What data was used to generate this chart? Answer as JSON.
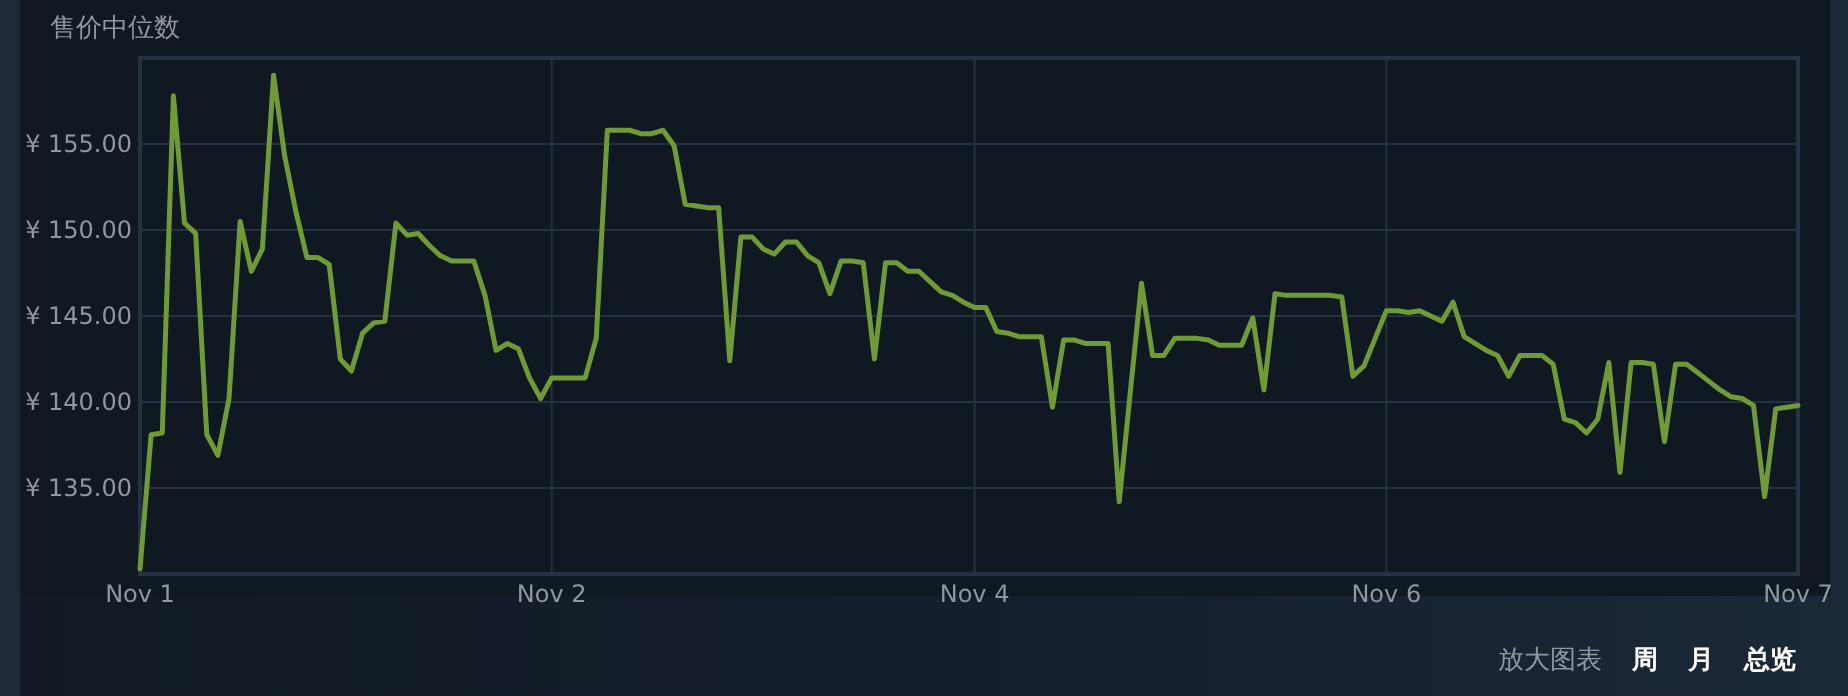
{
  "chart_data": {
    "type": "line",
    "title": "售价中位数",
    "categories": [
      "Nov 1",
      null,
      null,
      null,
      null,
      null,
      null,
      null,
      null,
      null,
      null,
      null,
      null,
      null,
      null,
      null,
      null,
      null,
      null,
      null,
      null,
      null,
      null,
      null,
      null,
      null,
      null,
      null,
      null,
      null,
      null,
      null,
      null,
      null,
      null,
      null,
      null,
      "Nov 2",
      null,
      null,
      null,
      null,
      null,
      null,
      null,
      null,
      null,
      null,
      null,
      null,
      null,
      null,
      null,
      null,
      null,
      null,
      null,
      null,
      null,
      null,
      null,
      null,
      null,
      null,
      null,
      null,
      null,
      null,
      null,
      null,
      null,
      null,
      null,
      null,
      null,
      "Nov 4",
      null,
      null,
      null,
      null,
      null,
      null,
      null,
      null,
      null,
      null,
      null,
      null,
      null,
      null,
      null,
      null,
      null,
      null,
      null,
      null,
      null,
      null,
      null,
      null,
      null,
      null,
      null,
      null,
      null,
      null,
      null,
      null,
      null,
      null,
      null,
      null,
      "Nov 6",
      null,
      null,
      null,
      null,
      null,
      null,
      null,
      null,
      null,
      null,
      null,
      null,
      null,
      null,
      null,
      null,
      null,
      null,
      null,
      null,
      null,
      null,
      null,
      null,
      null,
      null,
      null,
      null,
      null,
      null,
      null,
      null,
      null,
      null,
      null,
      null,
      "Nov 7"
    ],
    "series": [
      {
        "color": "#6f9a36",
        "values": [
          130.3,
          138.1,
          138.2,
          157.8,
          150.4,
          149.8,
          138.1,
          136.9,
          140.2,
          150.5,
          147.6,
          148.9,
          159.0,
          154.3,
          151.1,
          148.4,
          148.4,
          148.0,
          142.5,
          141.8,
          144.0,
          144.6,
          144.7,
          150.4,
          149.7,
          149.8,
          149.1,
          148.5,
          148.2,
          148.2,
          148.2,
          146.2,
          143.0,
          143.4,
          143.1,
          141.4,
          140.2,
          141.4,
          141.4,
          141.4,
          141.4,
          143.7,
          155.8,
          155.8,
          155.8,
          155.6,
          155.6,
          155.8,
          154.9,
          151.5,
          151.4,
          151.3,
          151.3,
          142.4,
          149.6,
          149.6,
          148.9,
          148.6,
          149.3,
          149.3,
          148.5,
          148.1,
          146.3,
          148.2,
          148.2,
          148.1,
          142.5,
          148.1,
          148.1,
          147.6,
          147.6,
          147.0,
          146.4,
          146.2,
          145.8,
          145.5,
          145.5,
          144.1,
          144.0,
          143.8,
          143.8,
          143.8,
          139.7,
          143.6,
          143.6,
          143.4,
          143.4,
          143.4,
          134.2,
          140.6,
          146.9,
          142.7,
          142.7,
          143.7,
          143.7,
          143.7,
          143.6,
          143.3,
          143.3,
          143.3,
          144.9,
          140.7,
          146.3,
          146.2,
          146.2,
          146.2,
          146.2,
          146.2,
          146.1,
          141.5,
          142.1,
          143.7,
          145.3,
          145.3,
          145.2,
          145.3,
          145.0,
          144.7,
          145.8,
          143.8,
          143.4,
          143.0,
          142.7,
          141.5,
          142.7,
          142.7,
          142.7,
          142.2,
          139.0,
          138.8,
          138.2,
          139.0,
          142.3,
          135.9,
          142.3,
          142.3,
          142.2,
          137.7,
          142.2,
          142.2,
          141.7,
          141.2,
          140.7,
          140.3,
          140.2,
          139.8,
          134.5,
          139.6,
          139.7,
          139.8
        ]
      }
    ],
    "ylim": [
      130,
      160
    ],
    "yticks": [
      {
        "value": 135,
        "label": "¥ 135.00"
      },
      {
        "value": 140,
        "label": "¥ 140.00"
      },
      {
        "value": 145,
        "label": "¥ 145.00"
      },
      {
        "value": 150,
        "label": "¥ 150.00"
      },
      {
        "value": 155,
        "label": "¥ 155.00"
      }
    ],
    "grid": true,
    "line_style": "solid",
    "annotations": [
      "放大图表",
      "周",
      "月",
      "总览"
    ]
  }
}
